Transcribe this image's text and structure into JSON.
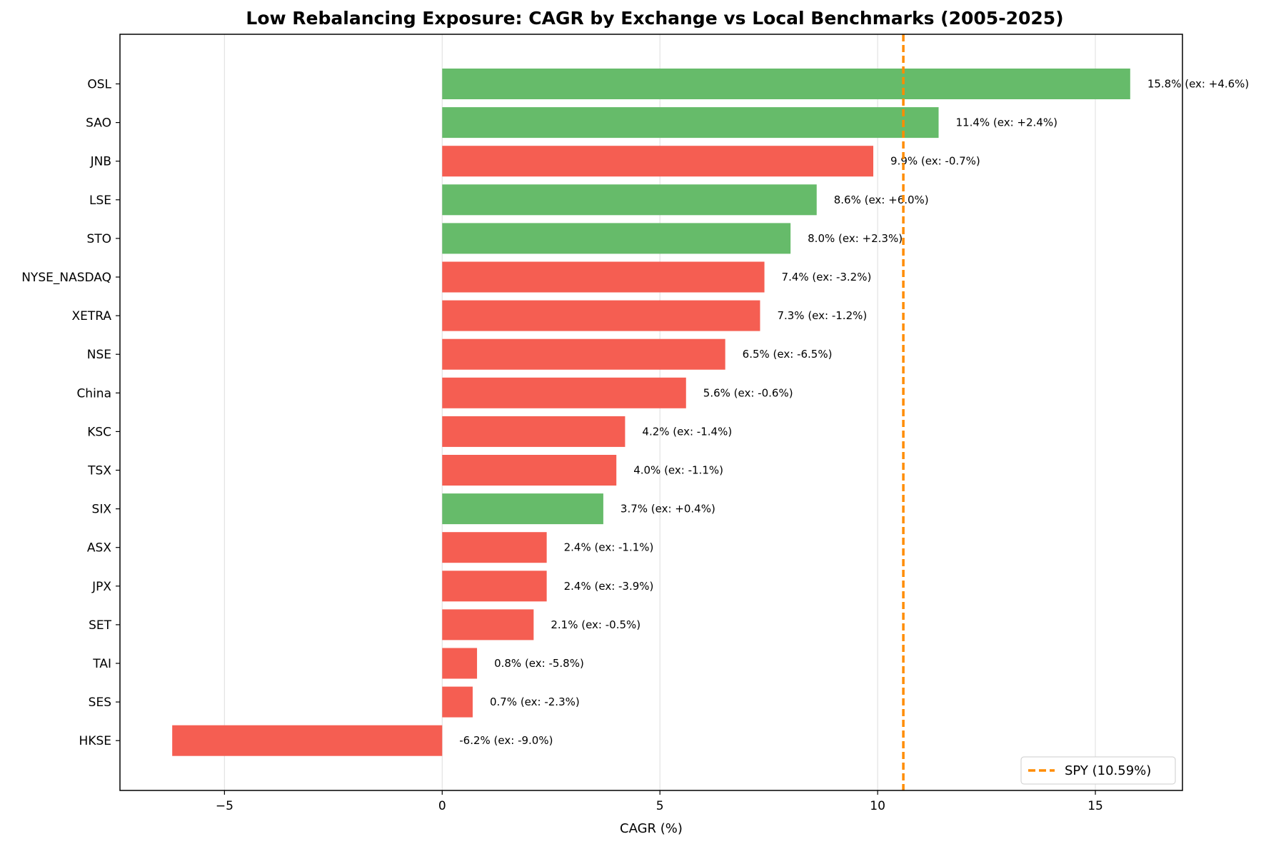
{
  "chart_data": {
    "type": "bar",
    "orientation": "horizontal",
    "title": "Low Rebalancing Exposure: CAGR by Exchange vs Local Benchmarks (2005-2025)",
    "xlabel": "CAGR (%)",
    "ylabel": "",
    "xlim": [
      -7.4,
      17.0
    ],
    "xticks": [
      -5,
      0,
      5,
      10,
      15
    ],
    "xtick_labels": [
      "−5",
      "0",
      "5",
      "10",
      "15"
    ],
    "grid": "vertical",
    "colors": {
      "positive_excess": "#66bb6a",
      "negative_excess": "#f55e52",
      "reference_line": "#ff8c00"
    },
    "categories": [
      "OSL",
      "SAO",
      "JNB",
      "LSE",
      "STO",
      "NYSE_NASDAQ",
      "XETRA",
      "NSE",
      "China",
      "KSC",
      "TSX",
      "SIX",
      "ASX",
      "JPX",
      "SET",
      "TAI",
      "SES",
      "HKSE"
    ],
    "values": [
      15.8,
      11.4,
      9.9,
      8.6,
      8.0,
      7.4,
      7.3,
      6.5,
      5.6,
      4.2,
      4.0,
      3.7,
      2.4,
      2.4,
      2.1,
      0.8,
      0.7,
      -6.2
    ],
    "excess": [
      4.6,
      2.4,
      -0.7,
      6.0,
      2.3,
      -3.2,
      -1.2,
      -6.5,
      -0.6,
      -1.4,
      -1.1,
      0.4,
      -1.1,
      -3.9,
      -0.5,
      -5.8,
      -2.3,
      -9.0
    ],
    "data_labels": [
      "15.8% (ex: +4.6%)",
      "11.4% (ex: +2.4%)",
      "9.9% (ex: -0.7%)",
      "8.6% (ex: +6.0%)",
      "8.0% (ex: +2.3%)",
      "7.4% (ex: -3.2%)",
      "7.3% (ex: -1.2%)",
      "6.5% (ex: -6.5%)",
      "5.6% (ex: -0.6%)",
      "4.2% (ex: -1.4%)",
      "4.0% (ex: -1.1%)",
      "3.7% (ex: +0.4%)",
      "2.4% (ex: -1.1%)",
      "2.4% (ex: -3.9%)",
      "2.1% (ex: -0.5%)",
      "0.8% (ex: -5.8%)",
      "0.7% (ex: -2.3%)",
      "-6.2% (ex: -9.0%)"
    ],
    "reference_line": {
      "value": 10.59,
      "label": "SPY (10.59%)",
      "style": "dashed"
    },
    "legend": {
      "placement": "lower-right",
      "entries": [
        "SPY (10.59%)"
      ]
    }
  }
}
